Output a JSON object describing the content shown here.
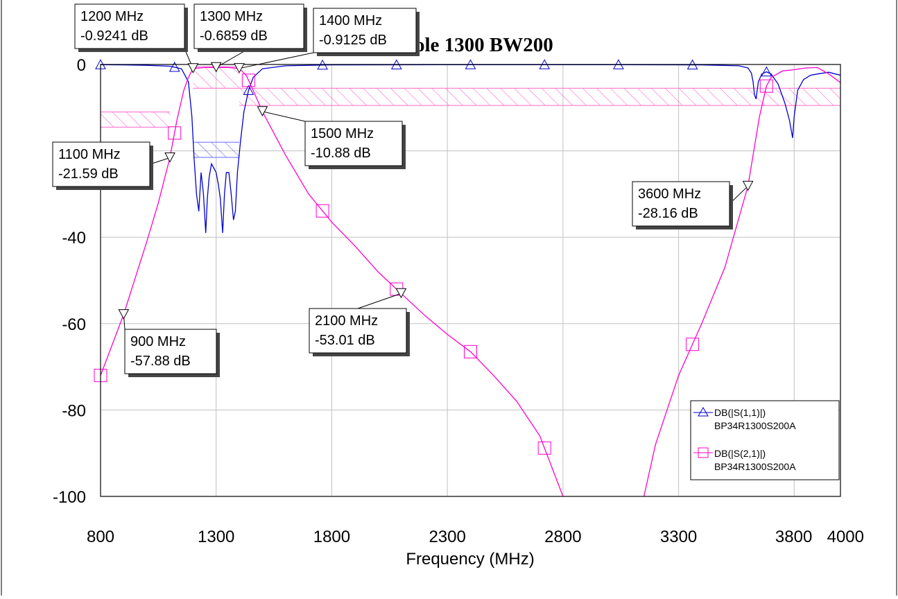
{
  "chart_data": {
    "type": "line",
    "title": "ole 1300 BW200",
    "xlabel": "Frequency (MHz)",
    "ylabel": "",
    "xlim": [
      800,
      4000
    ],
    "ylim": [
      -100,
      0
    ],
    "x_ticks": [
      "800",
      "1300",
      "1800",
      "2300",
      "2800",
      "3300",
      "3800",
      "4000"
    ],
    "y_ticks": [
      "0",
      "-20",
      "-40",
      "-60",
      "-80",
      "-100"
    ],
    "grid": true,
    "legend_position": "bottom-right",
    "series": [
      {
        "name": "DB(|S(1,1)|)",
        "source": "BP34R1300S200A",
        "color": "#0000cc",
        "marker": "triangle",
        "points": [
          [
            800,
            -0.05
          ],
          [
            900,
            -0.1
          ],
          [
            1000,
            -0.2
          ],
          [
            1100,
            -0.4
          ],
          [
            1150,
            -1.0
          ],
          [
            1180,
            -4
          ],
          [
            1195,
            -12
          ],
          [
            1205,
            -22
          ],
          [
            1215,
            -30
          ],
          [
            1225,
            -34
          ],
          [
            1235,
            -25
          ],
          [
            1245,
            -30
          ],
          [
            1255,
            -39
          ],
          [
            1262,
            -31
          ],
          [
            1270,
            -26
          ],
          [
            1280,
            -23
          ],
          [
            1290,
            -24
          ],
          [
            1300,
            -25
          ],
          [
            1310,
            -28
          ],
          [
            1318,
            -31
          ],
          [
            1328,
            -39
          ],
          [
            1336,
            -30
          ],
          [
            1344,
            -25
          ],
          [
            1355,
            -25
          ],
          [
            1365,
            -30
          ],
          [
            1375,
            -36
          ],
          [
            1383,
            -34
          ],
          [
            1392,
            -25
          ],
          [
            1405,
            -18
          ],
          [
            1420,
            -11
          ],
          [
            1440,
            -6
          ],
          [
            1460,
            -3
          ],
          [
            1500,
            -1
          ],
          [
            1600,
            -0.3
          ],
          [
            1800,
            -0.1
          ],
          [
            2400,
            -0.05
          ],
          [
            3000,
            -0.05
          ],
          [
            3400,
            -0.1
          ],
          [
            3560,
            -0.3
          ],
          [
            3600,
            -0.8
          ],
          [
            3615,
            -2
          ],
          [
            3622,
            -4
          ],
          [
            3628,
            -7
          ],
          [
            3635,
            -8
          ],
          [
            3645,
            -4
          ],
          [
            3660,
            -2.2
          ],
          [
            3680,
            -1.7
          ],
          [
            3700,
            -2.2
          ],
          [
            3730,
            -4.5
          ],
          [
            3760,
            -9
          ],
          [
            3780,
            -13
          ],
          [
            3793,
            -17
          ],
          [
            3800,
            -12
          ],
          [
            3815,
            -6
          ],
          [
            3840,
            -3.5
          ],
          [
            3870,
            -2.5
          ],
          [
            3900,
            -2.2
          ],
          [
            3950,
            -1.8
          ],
          [
            4000,
            -2.5
          ]
        ],
        "markers_at": [
          800,
          1120,
          1440,
          1760,
          2080,
          2400,
          2720,
          3040,
          3360,
          3680
        ]
      },
      {
        "name": "DB(|S(2,1)|)",
        "source": "BP34R1300S200A",
        "color": "#ff00cc",
        "marker": "square",
        "points": [
          [
            800,
            -72
          ],
          [
            900,
            -57.88
          ],
          [
            1000,
            -41
          ],
          [
            1050,
            -32
          ],
          [
            1100,
            -21.59
          ],
          [
            1130,
            -13
          ],
          [
            1160,
            -6
          ],
          [
            1180,
            -3
          ],
          [
            1200,
            -0.9241
          ],
          [
            1250,
            -0.7
          ],
          [
            1300,
            -0.6859
          ],
          [
            1350,
            -0.7
          ],
          [
            1400,
            -0.9125
          ],
          [
            1430,
            -2.5
          ],
          [
            1460,
            -6
          ],
          [
            1500,
            -10.88
          ],
          [
            1600,
            -21
          ],
          [
            1700,
            -30
          ],
          [
            1800,
            -36.5
          ],
          [
            1900,
            -42
          ],
          [
            2000,
            -48
          ],
          [
            2100,
            -53.01
          ],
          [
            2200,
            -58
          ],
          [
            2300,
            -62.5
          ],
          [
            2400,
            -66.5
          ],
          [
            2500,
            -72
          ],
          [
            2600,
            -78
          ],
          [
            2700,
            -86
          ],
          [
            2800,
            -100
          ]
        ],
        "points_b": [
          [
            3150,
            -100
          ],
          [
            3200,
            -88
          ],
          [
            3300,
            -72
          ],
          [
            3400,
            -60
          ],
          [
            3500,
            -47
          ],
          [
            3600,
            -28.16
          ],
          [
            3650,
            -12
          ],
          [
            3680,
            -5
          ],
          [
            3700,
            -3
          ],
          [
            3750,
            -1.5
          ],
          [
            3800,
            -1.2
          ],
          [
            3850,
            -0.8
          ],
          [
            3900,
            -0.7
          ],
          [
            3950,
            -2.2
          ],
          [
            4000,
            -4.2
          ]
        ],
        "markers_at": [
          800,
          1120,
          1440,
          1760,
          2080,
          2400,
          2720,
          3040,
          3360,
          3680
        ]
      }
    ],
    "masks": [
      {
        "color": "#ff66cc",
        "x1": 800,
        "x2": 1100,
        "y_top": -11,
        "y_bottom": -14.5
      },
      {
        "color": "#ff66cc",
        "x1": 1200,
        "x2": 1400,
        "y_top": -0.5,
        "y_bottom": -5.5
      },
      {
        "color": "#ff66cc",
        "x1": 1400,
        "x2": 4000,
        "y_top": -5.5,
        "y_bottom": -9.5
      },
      {
        "color": "#6666ff",
        "x1": 1200,
        "x2": 1400,
        "y_top": -18,
        "y_bottom": -21.5
      }
    ],
    "annotations": [
      {
        "freq": "1200 MHz",
        "db": "-0.9241 dB",
        "x": 1200,
        "y": -0.9241,
        "series": 1
      },
      {
        "freq": "1300 MHz",
        "db": "-0.6859 dB",
        "x": 1300,
        "y": -0.6859,
        "series": 1
      },
      {
        "freq": "1400 MHz",
        "db": "-0.9125 dB",
        "x": 1400,
        "y": -0.9125,
        "series": 1
      },
      {
        "freq": "1500 MHz",
        "db": "-10.88 dB",
        "x": 1500,
        "y": -10.88,
        "series": 1
      },
      {
        "freq": "1100 MHz",
        "db": "-21.59 dB",
        "x": 1100,
        "y": -21.59,
        "series": 1
      },
      {
        "freq": "900 MHz",
        "db": "-57.88 dB",
        "x": 900,
        "y": -57.88,
        "series": 1
      },
      {
        "freq": "2100 MHz",
        "db": "-53.01 dB",
        "x": 2100,
        "y": -53.01,
        "series": 1
      },
      {
        "freq": "3600 MHz",
        "db": "-28.16 dB",
        "x": 3600,
        "y": -28.16,
        "series": 1
      }
    ]
  }
}
